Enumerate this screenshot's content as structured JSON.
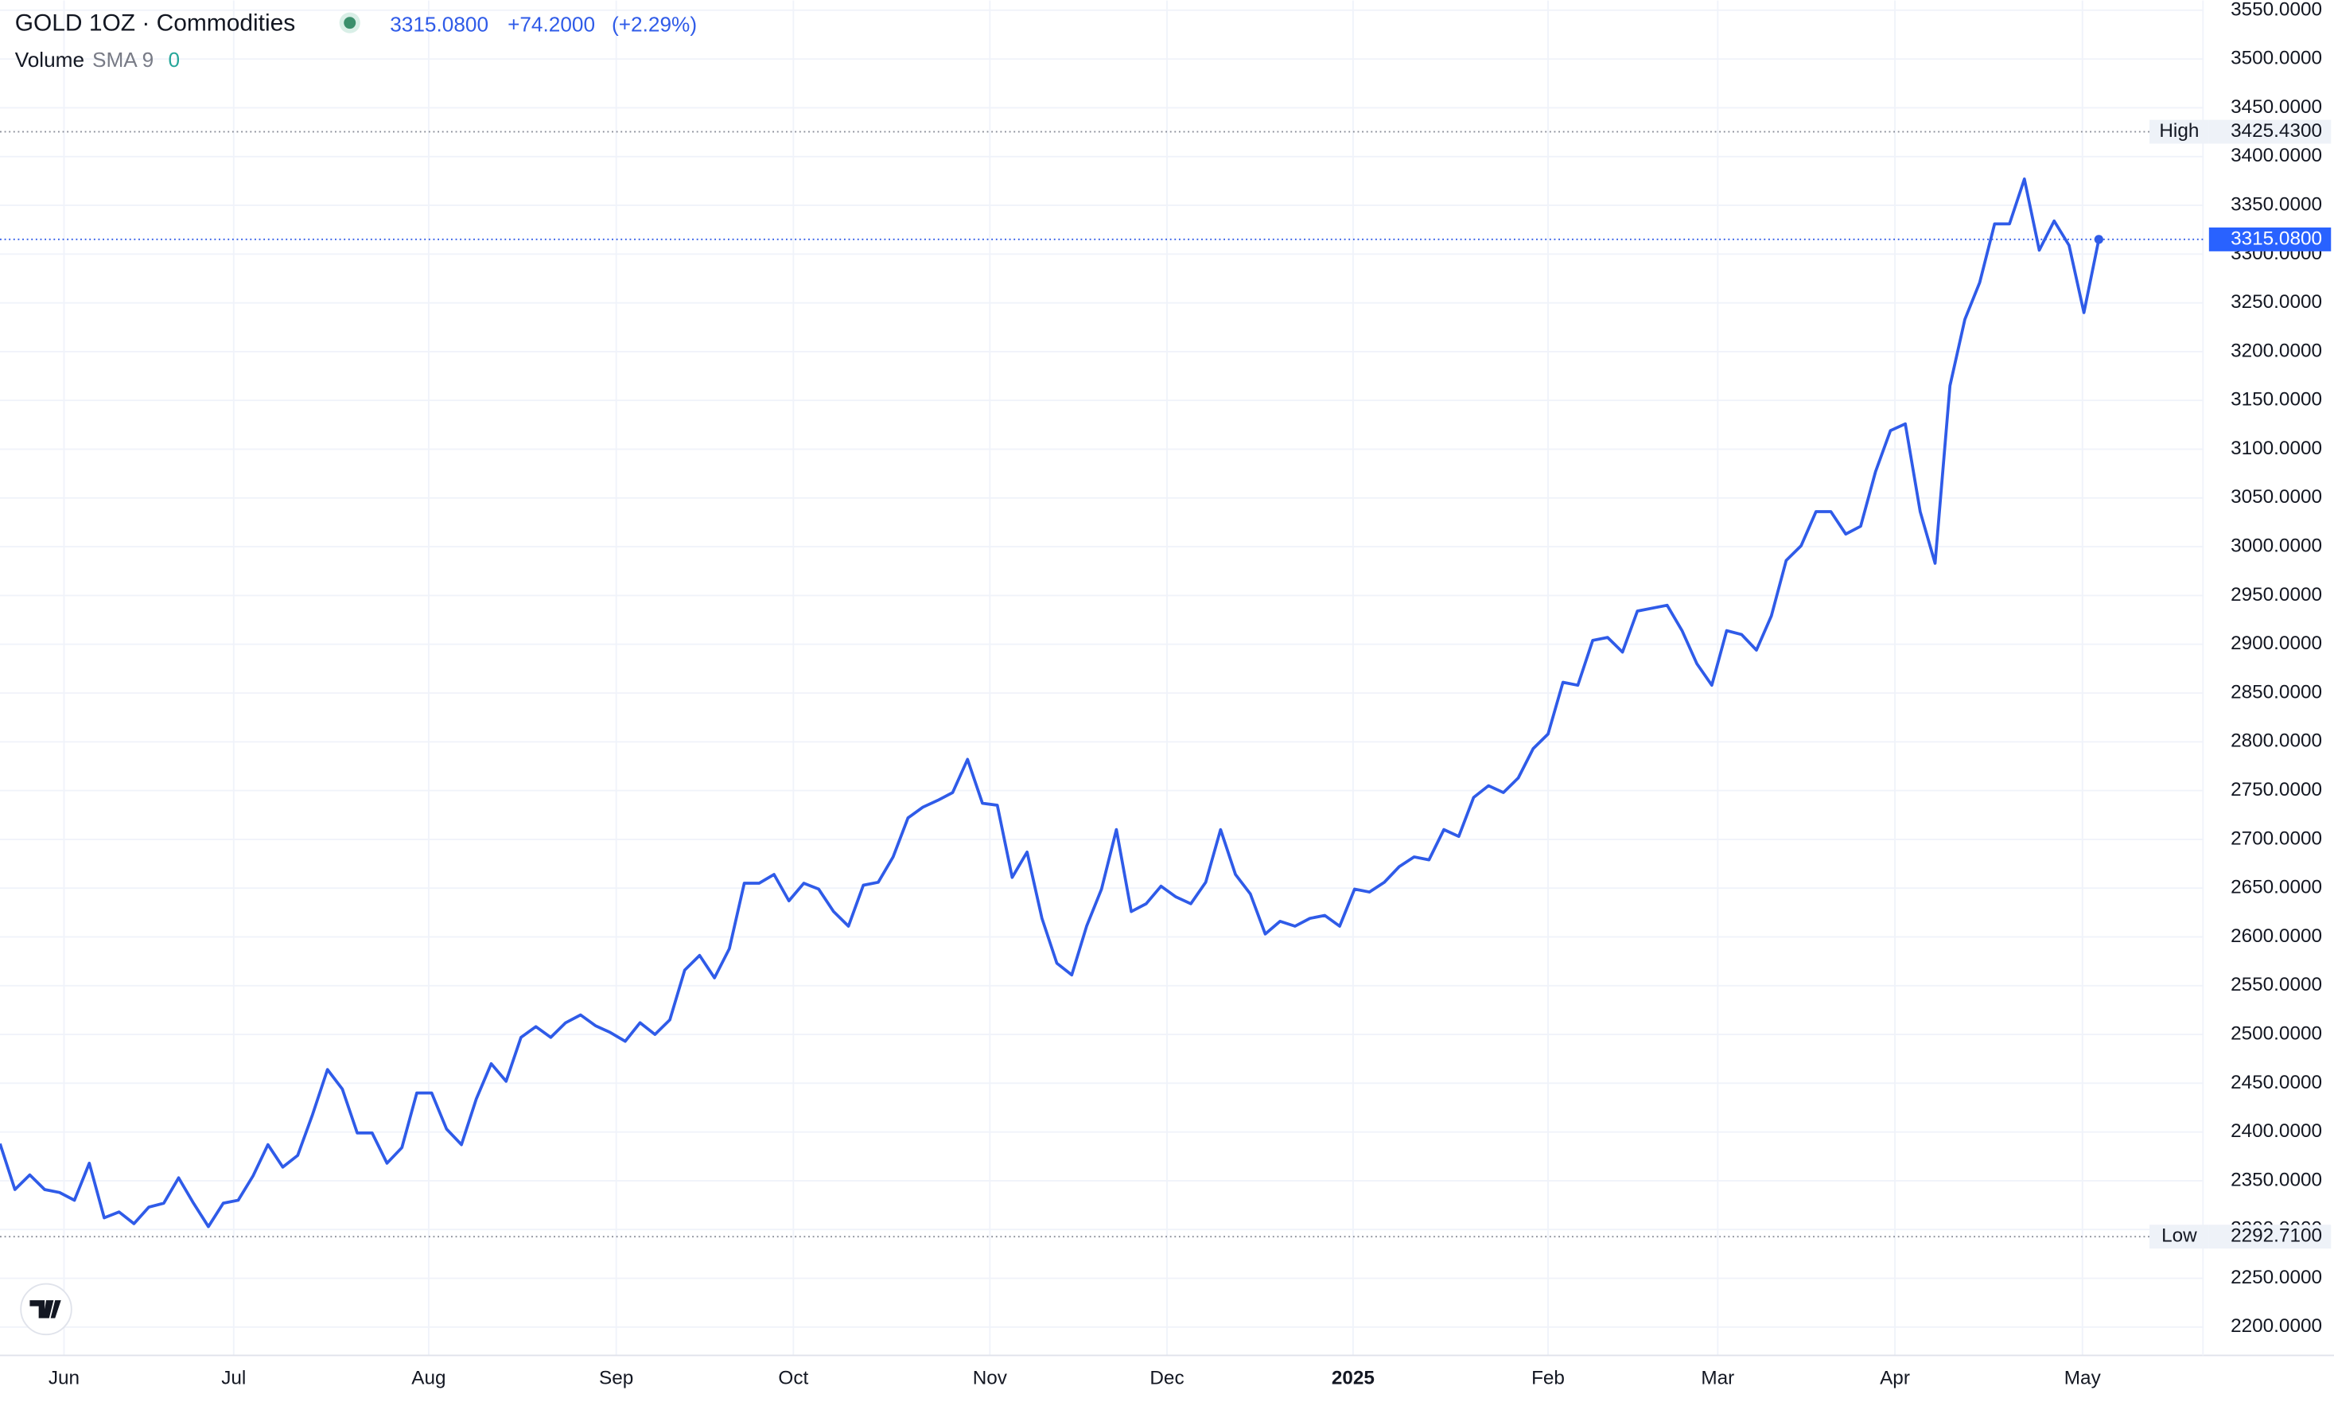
{
  "chart_data": {
    "type": "line",
    "title": "GOLD 1OZ · Commodities",
    "last_price": {
      "value": 3315.08,
      "label": "3315.0800"
    },
    "change": {
      "value": 74.2,
      "label": "+74.2000"
    },
    "change_percent": {
      "value": 2.29,
      "label": "(+2.29%)"
    },
    "indicator": {
      "name": "Volume",
      "params": "SMA 9",
      "value": 0
    },
    "high": {
      "name": "High",
      "value": 3425.43,
      "label": "3425.4300"
    },
    "low": {
      "name": "Low",
      "value": 2292.71,
      "label": "2292.7100"
    },
    "color": "#2f5be8",
    "values": [
      2388,
      2341,
      2356,
      2341,
      2338,
      2330,
      2368,
      2312,
      2318,
      2306,
      2323,
      2327,
      2353,
      2327,
      2303,
      2327,
      2330,
      2355,
      2387,
      2364,
      2376,
      2418,
      2464,
      2444,
      2399,
      2399,
      2368,
      2384,
      2440,
      2440,
      2403,
      2387,
      2434,
      2470,
      2452,
      2497,
      2508,
      2497,
      2512,
      2520,
      2509,
      2502,
      2493,
      2512,
      2500,
      2515,
      2566,
      2581,
      2558,
      2588,
      2655,
      2655,
      2664,
      2637,
      2655,
      2649,
      2626,
      2611,
      2653,
      2656,
      2682,
      2722,
      2733,
      2740,
      2748,
      2782,
      2737,
      2735,
      2661,
      2687,
      2619,
      2573,
      2561,
      2611,
      2649,
      2710,
      2626,
      2634,
      2652,
      2641,
      2634,
      2656,
      2710,
      2664,
      2644,
      2603,
      2616,
      2611,
      2619,
      2622,
      2611,
      2649,
      2646,
      2656,
      2672,
      2682,
      2679,
      2710,
      2703,
      2743,
      2755,
      2748,
      2763,
      2793,
      2808,
      2861,
      2858,
      2904,
      2907,
      2892,
      2934,
      2937,
      2940,
      2914,
      2880,
      2858,
      2914,
      2910,
      2894,
      2929,
      2986,
      3001,
      3036,
      3036,
      3013,
      3021,
      3077,
      3119,
      3126,
      3036,
      2983,
      3165,
      3233,
      3271,
      3331,
      3331,
      3377,
      3304,
      3334,
      3309,
      3240,
      3315.08
    ],
    "xlim": [
      0,
      148
    ],
    "xticks": [
      {
        "value": 4.3,
        "label": "Jun"
      },
      {
        "value": 15.7,
        "label": "Jul"
      },
      {
        "value": 28.8,
        "label": "Aug"
      },
      {
        "value": 41.4,
        "label": "Sep"
      },
      {
        "value": 53.3,
        "label": "Oct"
      },
      {
        "value": 66.5,
        "label": "Nov"
      },
      {
        "value": 78.4,
        "label": "Dec"
      },
      {
        "value": 90.9,
        "label": "2025"
      },
      {
        "value": 104,
        "label": "Feb"
      },
      {
        "value": 115.4,
        "label": "Mar"
      },
      {
        "value": 127.3,
        "label": "Apr"
      },
      {
        "value": 139.9,
        "label": "May"
      }
    ],
    "ylim": [
      2171,
      3560
    ],
    "yticks": [
      {
        "value": 2200,
        "label": "2200.0000"
      },
      {
        "value": 2250,
        "label": "2250.0000"
      },
      {
        "value": 2300,
        "label": "2300.0000"
      },
      {
        "value": 2350,
        "label": "2350.0000"
      },
      {
        "value": 2400,
        "label": "2400.0000"
      },
      {
        "value": 2450,
        "label": "2450.0000"
      },
      {
        "value": 2500,
        "label": "2500.0000"
      },
      {
        "value": 2550,
        "label": "2550.0000"
      },
      {
        "value": 2600,
        "label": "2600.0000"
      },
      {
        "value": 2650,
        "label": "2650.0000"
      },
      {
        "value": 2700,
        "label": "2700.0000"
      },
      {
        "value": 2750,
        "label": "2750.0000"
      },
      {
        "value": 2800,
        "label": "2800.0000"
      },
      {
        "value": 2850,
        "label": "2850.0000"
      },
      {
        "value": 2900,
        "label": "2900.0000"
      },
      {
        "value": 2950,
        "label": "2950.0000"
      },
      {
        "value": 3000,
        "label": "3000.0000"
      },
      {
        "value": 3050,
        "label": "3050.0000"
      },
      {
        "value": 3100,
        "label": "3100.0000"
      },
      {
        "value": 3150,
        "label": "3150.0000"
      },
      {
        "value": 3200,
        "label": "3200.0000"
      },
      {
        "value": 3250,
        "label": "3250.0000"
      },
      {
        "value": 3300,
        "label": "3300.0000"
      },
      {
        "value": 3350,
        "label": "3350.0000"
      },
      {
        "value": 3400,
        "label": "3400.0000"
      },
      {
        "value": 3450,
        "label": "3450.0000"
      },
      {
        "value": 3500,
        "label": "3500.0000"
      },
      {
        "value": 3550,
        "label": "3550.0000"
      }
    ],
    "grid": true
  }
}
